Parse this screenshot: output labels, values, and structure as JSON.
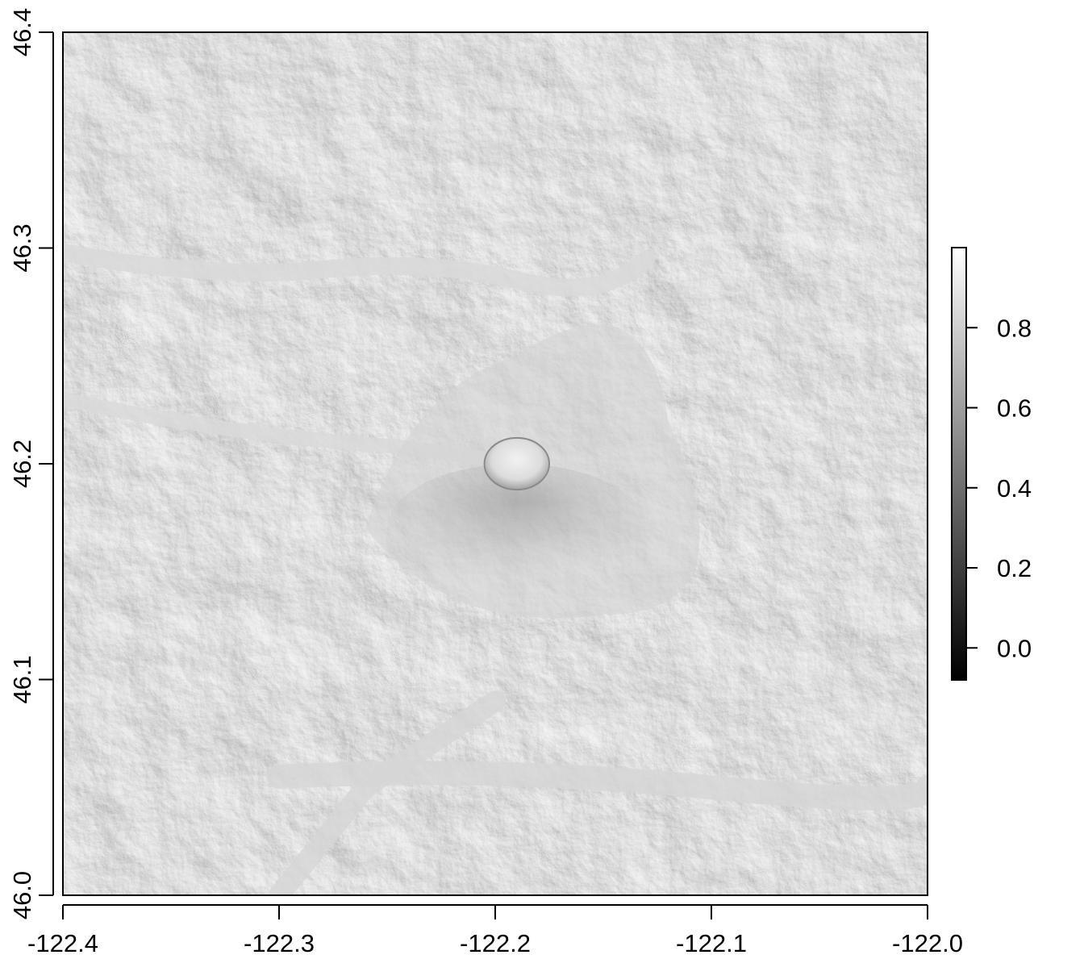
{
  "map": {
    "type": "raster-hillshade",
    "x_axis": {
      "range": [
        -122.4,
        -122.0
      ],
      "ticks": [
        -122.4,
        -122.3,
        -122.2,
        -122.1,
        -122.0
      ],
      "tick_labels": [
        "-122.4",
        "-122.3",
        "-122.2",
        "-122.1",
        "-122.0"
      ]
    },
    "y_axis": {
      "range": [
        46.0,
        46.4
      ],
      "ticks": [
        46.0,
        46.1,
        46.2,
        46.3,
        46.4
      ],
      "tick_labels": [
        "46.0",
        "46.1",
        "46.2",
        "46.3",
        "46.4"
      ]
    },
    "legend": {
      "placement": "right",
      "scale": "grayscale",
      "range": [
        -0.08,
        1.0
      ],
      "ticks": [
        0.0,
        0.2,
        0.4,
        0.6,
        0.8
      ],
      "tick_labels": [
        "0.0",
        "0.2",
        "0.4",
        "0.6",
        "0.8"
      ],
      "color_low": "#000000",
      "color_high": "#ffffff"
    },
    "feature": "volcanic crater near (-122.19, 46.20)"
  }
}
